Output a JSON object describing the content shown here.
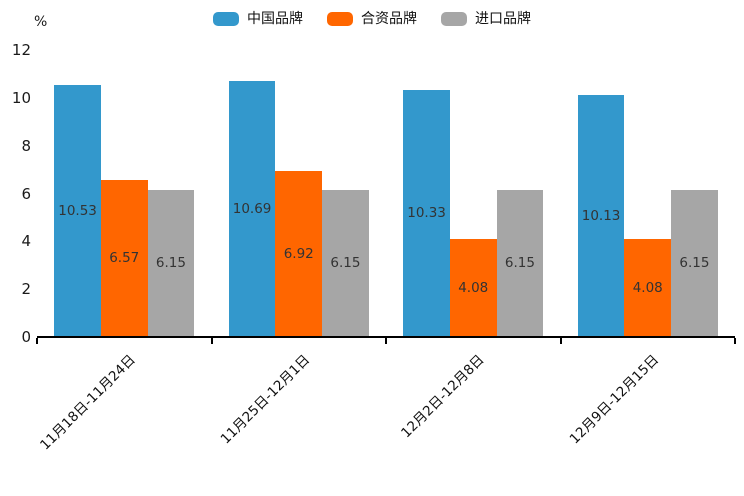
{
  "chart_data": {
    "type": "bar",
    "title": "",
    "ylabel_unit": "%",
    "categories": [
      "11月18日-11月24日",
      "11月25日-12月1日",
      "12月2日-12月8日",
      "12月9日-12月15日"
    ],
    "series": [
      {
        "name": "中国品牌",
        "color": "#3398CC",
        "values": [
          10.53,
          10.69,
          10.33,
          10.13
        ]
      },
      {
        "name": "合资品牌",
        "color": "#FF6600",
        "values": [
          6.57,
          6.92,
          4.08,
          4.08
        ]
      },
      {
        "name": "进口品牌",
        "color": "#A6A6A6",
        "values": [
          6.15,
          6.15,
          6.15,
          6.15
        ]
      }
    ],
    "ylim": [
      0,
      12
    ],
    "yticks": [
      0,
      2,
      4,
      6,
      8,
      10,
      12
    ],
    "legend_position": "top-center",
    "grid": false,
    "value_labels_shown": true,
    "value_label_color": "#333333",
    "axis_color": "#000000"
  }
}
